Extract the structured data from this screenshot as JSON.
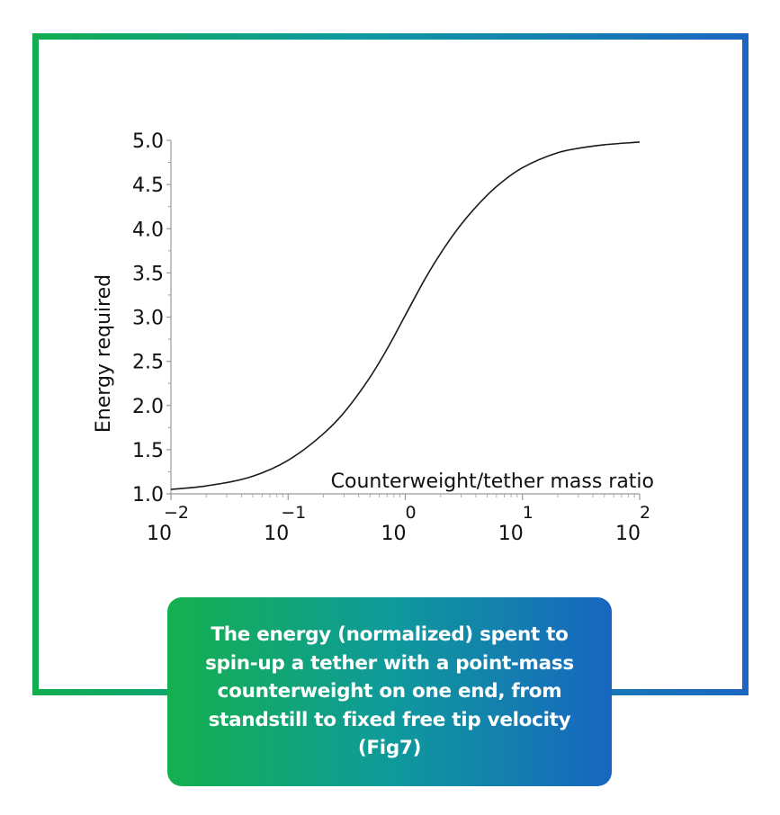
{
  "chart_data": {
    "type": "line",
    "title": "",
    "xlabel": "Counterweight/tether mass ratio",
    "ylabel": "Energy required",
    "x_scale": "log",
    "xlim": [
      0.01,
      100
    ],
    "ylim": [
      1.0,
      5.0
    ],
    "grid": false,
    "x_ticks": [
      {
        "base": "10",
        "exp": "−2"
      },
      {
        "base": "10",
        "exp": "−1"
      },
      {
        "base": "10",
        "exp": "0"
      },
      {
        "base": "10",
        "exp": "1"
      },
      {
        "base": "10",
        "exp": "2"
      }
    ],
    "y_ticks": [
      "1.0",
      "1.5",
      "2.0",
      "2.5",
      "3.0",
      "3.5",
      "4.0",
      "4.5",
      "5.0"
    ],
    "series": [
      {
        "name": "",
        "color": "#1a1a1a",
        "x": [
          0.01,
          0.02,
          0.05,
          0.1,
          0.2,
          0.3,
          0.5,
          0.7,
          1,
          1.5,
          2,
          3,
          5,
          7,
          10,
          20,
          30,
          50,
          100
        ],
        "y": [
          1.05,
          1.09,
          1.2,
          1.38,
          1.68,
          1.92,
          2.32,
          2.64,
          3.02,
          3.45,
          3.72,
          4.05,
          4.38,
          4.55,
          4.69,
          4.86,
          4.91,
          4.95,
          4.98
        ]
      }
    ]
  },
  "caption": "The energy (normalized) spent to spin-up a tether with a point-mass counterweight on one end, from standstill to fixed free tip velocity (Fig7)",
  "colors": {
    "gradient_start": "#12ad4f",
    "gradient_end": "#1a66c2",
    "caption_text": "#ffffff"
  }
}
